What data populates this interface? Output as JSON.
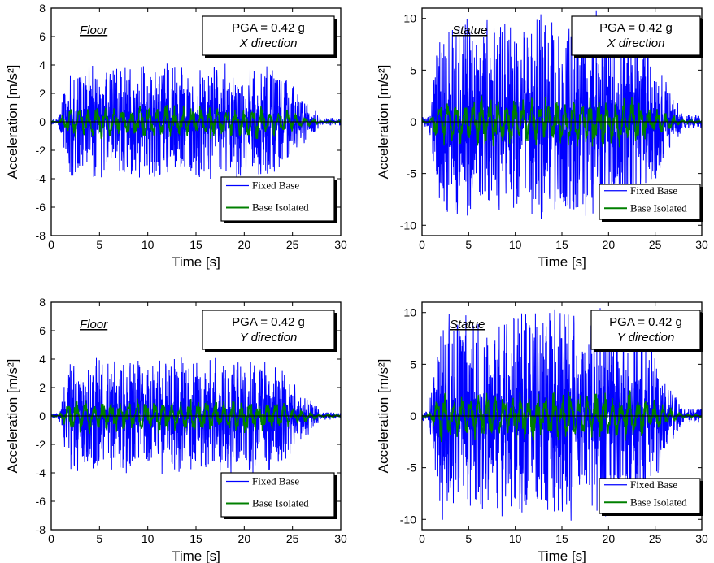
{
  "chart_data": [
    {
      "type": "line",
      "panel_label": "Floor",
      "info_box": {
        "pga": "PGA = 0.42 g",
        "direction": "X direction"
      },
      "xlabel": "Time [s]",
      "ylabel": "Acceleration [m/s²]",
      "xlim": [
        0,
        30
      ],
      "ylim": [
        -8,
        8
      ],
      "x_ticks": [
        "0",
        "5",
        "10",
        "15",
        "20",
        "25",
        "30"
      ],
      "y_ticks": [
        "-8",
        "-6",
        "-4",
        "-2",
        "0",
        "2",
        "4",
        "6",
        "8"
      ],
      "legend_placement": "bottom-right",
      "series": [
        {
          "name": "Fixed Base",
          "color": "#0000ff",
          "peak": 4.1,
          "min": -4.0
        },
        {
          "name": "Base Isolated",
          "color": "#008000",
          "peak": 1.2,
          "min": -1.2
        }
      ]
    },
    {
      "type": "line",
      "panel_label": "Statue",
      "info_box": {
        "pga": "PGA = 0.42 g",
        "direction": "X direction"
      },
      "xlabel": "Time [s]",
      "ylabel": "Acceleration [m/s²]",
      "xlim": [
        0,
        30
      ],
      "ylim": [
        -11,
        11
      ],
      "x_ticks": [
        "0",
        "5",
        "10",
        "15",
        "20",
        "25",
        "30"
      ],
      "y_ticks": [
        "-10",
        "-5",
        "0",
        "5",
        "10"
      ],
      "legend_placement": "bottom-right",
      "series": [
        {
          "name": "Fixed Base",
          "color": "#0000ff",
          "peak": 10.4,
          "min": -9.1
        },
        {
          "name": "Base Isolated",
          "color": "#008000",
          "peak": 2.4,
          "min": -2.4
        }
      ]
    },
    {
      "type": "line",
      "panel_label": "Floor",
      "info_box": {
        "pga": "PGA = 0.42 g",
        "direction": "Y direction"
      },
      "xlabel": "Time [s]",
      "ylabel": "Acceleration [m/s²]",
      "xlim": [
        0,
        30
      ],
      "ylim": [
        -8,
        8
      ],
      "x_ticks": [
        "0",
        "5",
        "10",
        "15",
        "20",
        "25",
        "30"
      ],
      "y_ticks": [
        "-8",
        "-6",
        "-4",
        "-2",
        "0",
        "2",
        "4",
        "6",
        "8"
      ],
      "legend_placement": "bottom-right",
      "series": [
        {
          "name": "Fixed Base",
          "color": "#0000ff",
          "peak": 4.1,
          "min": -4.0
        },
        {
          "name": "Base Isolated",
          "color": "#008000",
          "peak": 1.2,
          "min": -1.2
        }
      ]
    },
    {
      "type": "line",
      "panel_label": "Statue",
      "info_box": {
        "pga": "PGA = 0.42 g",
        "direction": "Y direction"
      },
      "xlabel": "Time [s]",
      "ylabel": "Acceleration [m/s²]",
      "xlim": [
        0,
        30
      ],
      "ylim": [
        -11,
        11
      ],
      "x_ticks": [
        "0",
        "5",
        "10",
        "15",
        "20",
        "25",
        "30"
      ],
      "y_ticks": [
        "-10",
        "-5",
        "0",
        "5",
        "10"
      ],
      "legend_placement": "bottom-right",
      "series": [
        {
          "name": "Fixed Base",
          "color": "#0000ff",
          "peak": 10.3,
          "min": -9.7
        },
        {
          "name": "Base Isolated",
          "color": "#008000",
          "peak": 2.4,
          "min": -2.4
        }
      ]
    }
  ]
}
